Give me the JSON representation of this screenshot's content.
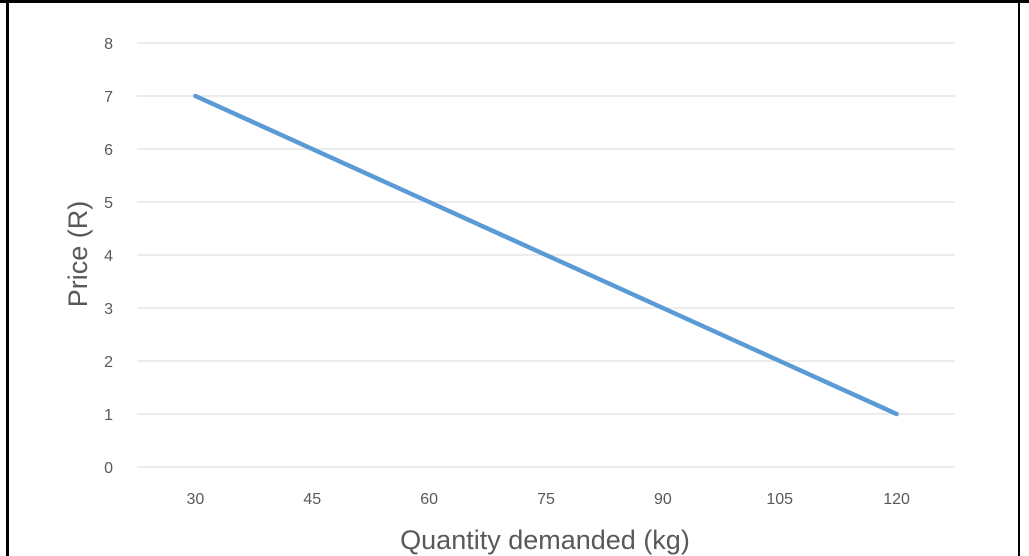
{
  "chart_data": {
    "type": "line",
    "title": "",
    "xlabel": "Quantity demanded (kg)",
    "ylabel": "Price (R)",
    "categories": [
      "30",
      "45",
      "60",
      "75",
      "90",
      "105",
      "120"
    ],
    "x": [
      30,
      45,
      60,
      75,
      90,
      105,
      120
    ],
    "ylim": [
      0,
      8
    ],
    "yticks": [
      "0",
      "1",
      "2",
      "3",
      "4",
      "5",
      "6",
      "7",
      "8"
    ],
    "grid": true,
    "legend": "none",
    "series": [
      {
        "values": [
          7,
          6,
          5,
          4,
          3,
          2,
          1
        ],
        "color": "#5b9bd5"
      }
    ],
    "colors": {
      "gridline": "#d9d9d9",
      "text": "#595959",
      "border": "#000000",
      "line": "#5b9bd5"
    }
  }
}
